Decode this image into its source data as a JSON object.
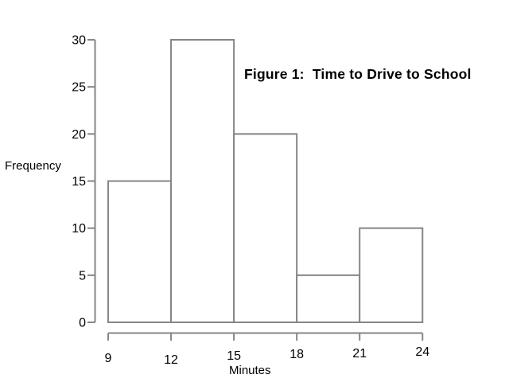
{
  "chart_data": {
    "type": "bar",
    "subtype": "histogram",
    "title": "Figure 1:  Time to Drive to School",
    "xlabel": "Minutes",
    "ylabel": "Frequency",
    "bin_edges": [
      9,
      12,
      15,
      18,
      21,
      24
    ],
    "values": [
      15,
      30,
      20,
      5,
      10
    ],
    "x_ticks": [
      "9",
      "12",
      "15",
      "18",
      "21",
      "24"
    ],
    "y_ticks": [
      "0",
      "5",
      "10",
      "15",
      "20",
      "25",
      "30"
    ],
    "xlim": [
      9,
      24
    ],
    "ylim": [
      0,
      30
    ],
    "grid": false,
    "legend": "none",
    "colors": {
      "background": "#ffffff",
      "bar_fill": "#ffffff",
      "line": "#868686",
      "text": "#000000"
    }
  }
}
